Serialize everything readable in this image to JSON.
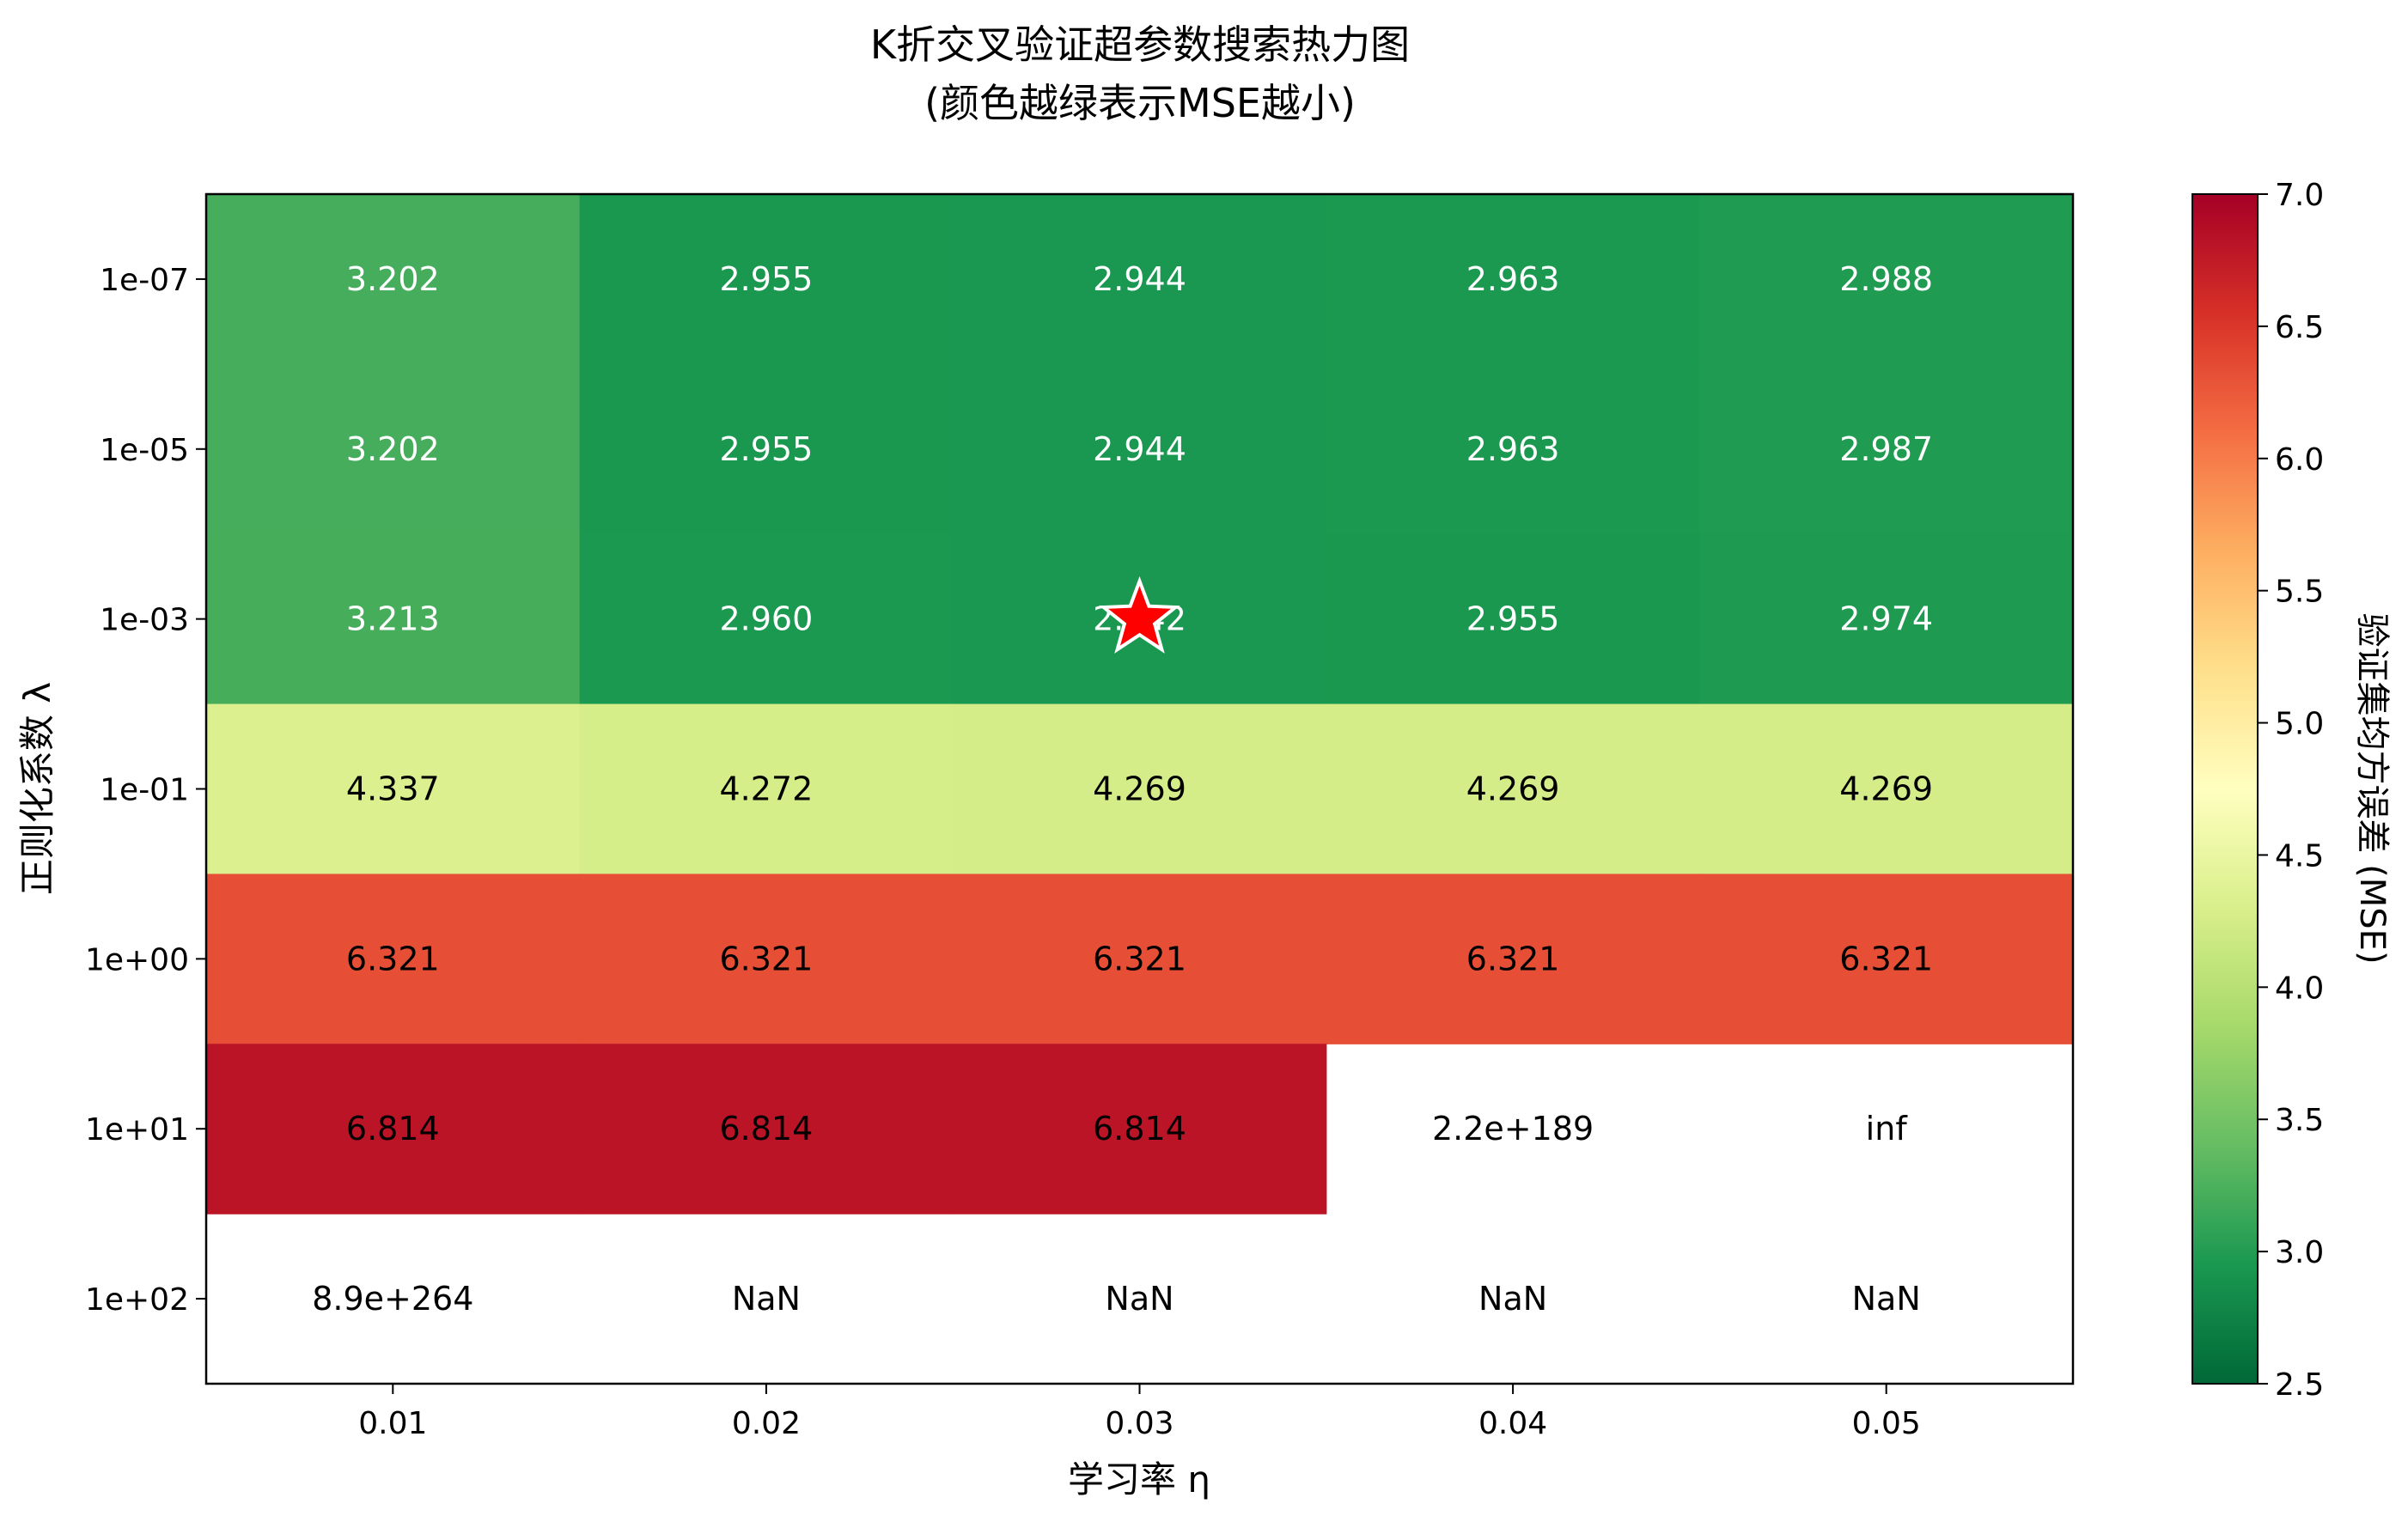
{
  "chart_data": {
    "type": "heatmap",
    "title": "K折交叉验证超参数搜索热力图",
    "subtitle": "(颜色越绿表示MSE越小)",
    "xlabel": "学习率 η",
    "ylabel": "正则化系数 λ",
    "x_categories": [
      "0.01",
      "0.02",
      "0.03",
      "0.04",
      "0.05"
    ],
    "y_categories": [
      "1e-07",
      "1e-05",
      "1e-03",
      "1e-01",
      "1e+00",
      "1e+01",
      "1e+02"
    ],
    "values": [
      [
        3.202,
        2.955,
        2.944,
        2.963,
        2.988
      ],
      [
        3.202,
        2.955,
        2.944,
        2.963,
        2.987
      ],
      [
        3.213,
        2.96,
        2.942,
        2.955,
        2.974
      ],
      [
        4.337,
        4.272,
        4.269,
        4.269,
        4.269
      ],
      [
        6.321,
        6.321,
        6.321,
        6.321,
        6.321
      ],
      [
        6.814,
        6.814,
        6.814,
        null,
        null
      ],
      [
        null,
        null,
        null,
        null,
        null
      ]
    ],
    "cell_labels": [
      [
        "3.202",
        "2.955",
        "2.944",
        "2.963",
        "2.988"
      ],
      [
        "3.202",
        "2.955",
        "2.944",
        "2.963",
        "2.987"
      ],
      [
        "3.213",
        "2.960",
        "2.942",
        "2.955",
        "2.974"
      ],
      [
        "4.337",
        "4.272",
        "4.269",
        "4.269",
        "4.269"
      ],
      [
        "6.321",
        "6.321",
        "6.321",
        "6.321",
        "6.321"
      ],
      [
        "6.814",
        "6.814",
        "6.814",
        "2.2e+189",
        "inf"
      ],
      [
        "8.9e+264",
        "NaN",
        "NaN",
        "NaN",
        "NaN"
      ]
    ],
    "best_marker": {
      "row": 2,
      "col": 2,
      "symbol": "star",
      "color": "#ff0000"
    },
    "colorbar": {
      "label": "验证集均方误差 (MSE)",
      "min": 2.5,
      "max": 7.0,
      "ticks": [
        "2.5",
        "3.0",
        "3.5",
        "4.0",
        "4.5",
        "5.0",
        "5.5",
        "6.0",
        "6.5",
        "7.0"
      ],
      "colormap": "RdYlGn_r"
    },
    "grid": false
  }
}
